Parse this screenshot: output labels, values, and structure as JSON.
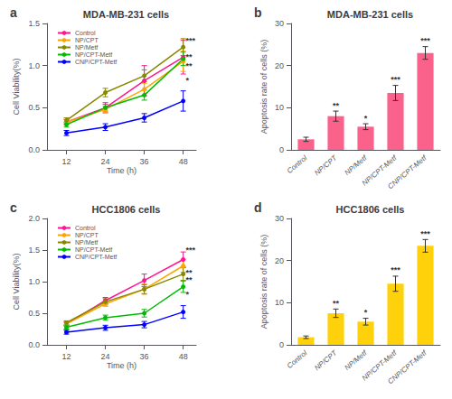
{
  "chart_data": [
    {
      "type": "line",
      "title": "MDA-MB-231 cells",
      "subtitle": "a",
      "xlabel": "Time (h)",
      "ylabel": "Cell Viability(%)",
      "x": [
        12,
        24,
        36,
        48
      ],
      "xlim": [
        6,
        52
      ],
      "xticks": [
        12,
        24,
        36,
        48
      ],
      "ylim": [
        0.0,
        1.5
      ],
      "yticks": [
        {
          "value": 0.0,
          "label": "0.0"
        },
        0.5,
        {
          "value": 1.0,
          "label": "1.0"
        },
        1.5
      ],
      "marker": "circle",
      "legend": "upper left",
      "grid": false,
      "series": [
        {
          "name": "Control",
          "color": "#FF1493",
          "values": [
            0.33,
            0.5,
            0.82,
            1.1
          ],
          "errors": [
            0.03,
            0.06,
            0.18,
            0.2
          ]
        },
        {
          "name": "NP/CPT",
          "color": "#FFA500",
          "values": [
            0.33,
            0.48,
            0.72,
            1.05
          ],
          "errors": [
            0.03,
            0.04,
            0.07,
            0.12
          ]
        },
        {
          "name": "NP/Metf",
          "color": "#888800",
          "values": [
            0.35,
            0.68,
            0.88,
            1.22
          ],
          "errors": [
            0.03,
            0.05,
            0.07,
            0.1
          ]
        },
        {
          "name": "NP/CPT-Metf",
          "color": "#00BB00",
          "values": [
            0.3,
            0.5,
            0.65,
            1.08
          ],
          "errors": [
            0.03,
            0.04,
            0.06,
            0.08
          ]
        },
        {
          "name": "CNP/CPT-Metf",
          "color": "#0000FF",
          "values": [
            0.2,
            0.27,
            0.38,
            0.58
          ],
          "errors": [
            0.03,
            0.04,
            0.05,
            0.12
          ]
        }
      ],
      "annotations": [
        {
          "text": "***",
          "x": 48.8,
          "y": 1.3
        },
        {
          "text": "**",
          "x": 48.8,
          "y": 1.1
        },
        {
          "text": "**",
          "x": 48.8,
          "y": 1.0
        },
        {
          "text": "*",
          "x": 48.8,
          "y": 0.82
        }
      ]
    },
    {
      "type": "bar",
      "title": "MDA-MB-231 cells",
      "subtitle": "b",
      "ylabel": "Apoptosis rate of cells (%)",
      "categories": [
        "Control",
        "NP/CPT",
        "NP/Metf",
        "NP/CPT-Metf",
        "CNP/CPT-Metf"
      ],
      "values": [
        2.5,
        8.0,
        5.5,
        13.5,
        23.0
      ],
      "errors": [
        0.5,
        1.2,
        0.7,
        1.8,
        1.5
      ],
      "ylim": [
        0,
        30
      ],
      "yticks": [
        0,
        10,
        20,
        30
      ],
      "grid": false,
      "annotations": [
        {
          "category": "NP/CPT",
          "text": "**"
        },
        {
          "category": "NP/Metf",
          "text": "*"
        },
        {
          "category": "NP/CPT-Metf",
          "text": "***"
        },
        {
          "category": "CNP/CPT-Metf",
          "text": "***"
        }
      ]
    },
    {
      "type": "line",
      "title": "HCC1806 cells",
      "subtitle": "c",
      "xlabel": "Time (h)",
      "ylabel": "Cell Viability(%)",
      "x": [
        12,
        24,
        36,
        48
      ],
      "xlim": [
        6,
        52
      ],
      "xticks": [
        12,
        24,
        36,
        48
      ],
      "ylim": [
        0.0,
        2.0
      ],
      "yticks": [
        {
          "value": 0.0,
          "label": "0.0"
        },
        0.5,
        {
          "value": 1.0,
          "label": "1.0"
        },
        1.5,
        {
          "value": 2.0,
          "label": "2.0"
        }
      ],
      "marker": "circle",
      "legend": "upper left",
      "grid": false,
      "series": [
        {
          "name": "Control",
          "color": "#FF1493",
          "values": [
            0.33,
            0.7,
            1.02,
            1.35
          ],
          "errors": [
            0.03,
            0.05,
            0.1,
            0.12
          ]
        },
        {
          "name": "NP/CPT",
          "color": "#FFA500",
          "values": [
            0.33,
            0.65,
            0.88,
            1.25
          ],
          "errors": [
            0.03,
            0.04,
            0.08,
            0.1
          ]
        },
        {
          "name": "NP/Metf",
          "color": "#888800",
          "values": [
            0.35,
            0.68,
            0.88,
            1.12
          ],
          "errors": [
            0.03,
            0.05,
            0.07,
            0.1
          ]
        },
        {
          "name": "NP/CPT-Metf",
          "color": "#00BB00",
          "values": [
            0.28,
            0.43,
            0.5,
            0.92
          ],
          "errors": [
            0.03,
            0.04,
            0.06,
            0.09
          ]
        },
        {
          "name": "CNP/CPT-Metf",
          "color": "#0000FF",
          "values": [
            0.2,
            0.27,
            0.32,
            0.52
          ],
          "errors": [
            0.03,
            0.04,
            0.05,
            0.1
          ]
        }
      ],
      "annotations": [
        {
          "text": "***",
          "x": 48.8,
          "y": 1.5
        },
        {
          "text": "**",
          "x": 48.8,
          "y": 1.15
        },
        {
          "text": "**",
          "x": 48.8,
          "y": 1.03
        },
        {
          "text": "*",
          "x": 48.8,
          "y": 0.8
        }
      ]
    },
    {
      "type": "bar",
      "title": "HCC1806 cells",
      "subtitle": "d",
      "ylabel": "Apoptosis rate of cells (%)",
      "categories": [
        "Control",
        "NP/CPT",
        "NP/Metf",
        "NP/CPT-Metf",
        "CNP/CPT-Metf"
      ],
      "values": [
        1.8,
        7.5,
        5.5,
        14.5,
        23.5
      ],
      "errors": [
        0.3,
        1.0,
        0.8,
        1.8,
        1.5
      ],
      "ylim": [
        0,
        30
      ],
      "yticks": [
        0,
        10,
        20,
        30
      ],
      "grid": false,
      "annotations": [
        {
          "category": "NP/CPT",
          "text": "**"
        },
        {
          "category": "NP/Metf",
          "text": "*"
        },
        {
          "category": "NP/CPT-Metf",
          "text": "***"
        },
        {
          "category": "CNP/CPT-Metf",
          "text": "***"
        }
      ]
    }
  ]
}
